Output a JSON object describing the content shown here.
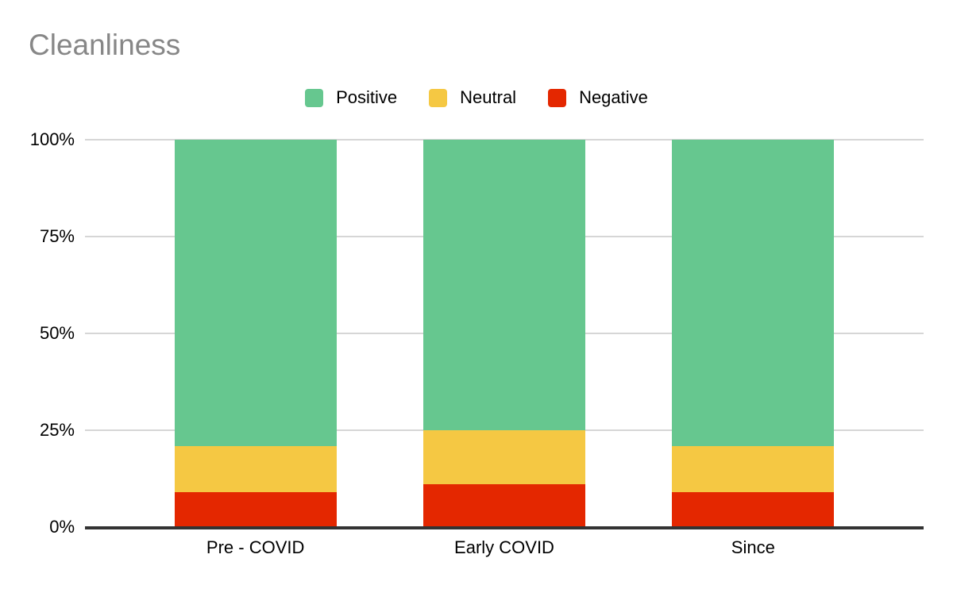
{
  "title": "Cleanliness",
  "colors": {
    "positive": "#66c78f",
    "neutral": "#f5c843",
    "negative": "#e42700",
    "title_text": "#878787",
    "gridline": "#d6d6d6",
    "axis_line": "#333333",
    "label_text": "#000000",
    "background": "#ffffff"
  },
  "legend": [
    {
      "label": "Positive",
      "color": "#66c78f"
    },
    {
      "label": "Neutral",
      "color": "#f5c843"
    },
    {
      "label": "Negative",
      "color": "#e42700"
    }
  ],
  "chart_data": {
    "type": "bar",
    "subtype": "stacked-percent",
    "title": "Cleanliness",
    "xlabel": "",
    "ylabel": "",
    "categories": [
      "Pre - COVID",
      "Early COVID",
      "Since"
    ],
    "series": [
      {
        "name": "Positive",
        "color": "#66c78f",
        "values": [
          79,
          75,
          79
        ]
      },
      {
        "name": "Neutral",
        "color": "#f5c843",
        "values": [
          12,
          14,
          12
        ]
      },
      {
        "name": "Negative",
        "color": "#e42700",
        "values": [
          9,
          11,
          9
        ]
      }
    ],
    "y_ticks": [
      {
        "value": 100,
        "label": "100%"
      },
      {
        "value": 75,
        "label": "75%"
      },
      {
        "value": 50,
        "label": "50%"
      },
      {
        "value": 25,
        "label": "25%"
      },
      {
        "value": 0,
        "label": "0%"
      }
    ],
    "ylim": [
      0,
      100
    ],
    "grid": true,
    "legend_position": "top"
  }
}
